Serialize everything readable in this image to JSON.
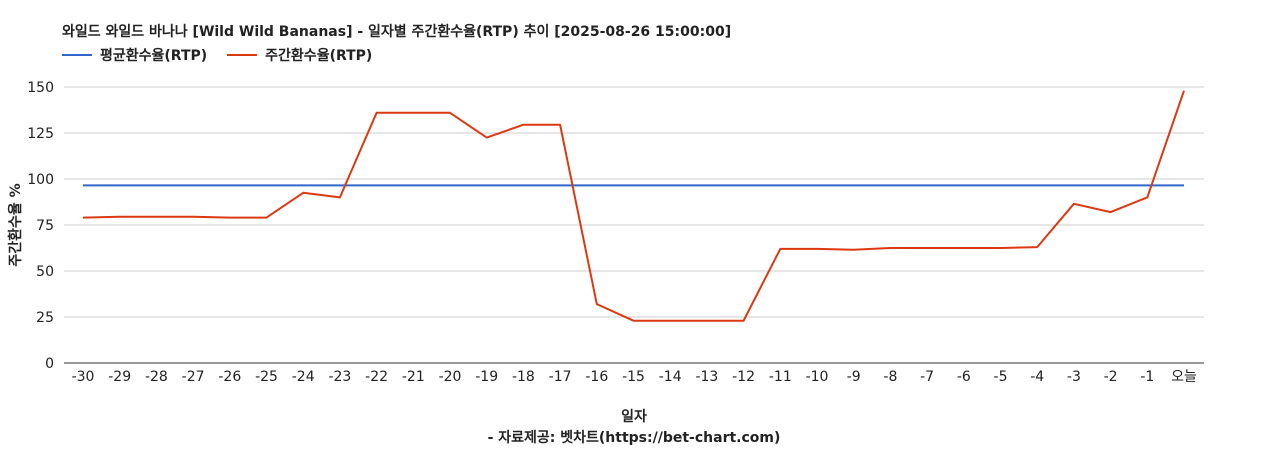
{
  "chart_data": {
    "type": "line",
    "title": "와일드 와일드 바나나 [Wild Wild Bananas] - 일자별 주간환수율(RTP) 추이 [2025-08-26 15:00:00]",
    "xlabel": "일자",
    "ylabel": "주간환수율 %",
    "source": "- 자료제공: 벳차트(https://bet-chart.com)",
    "ylim": [
      0,
      150
    ],
    "yticks": [
      0,
      25,
      50,
      75,
      100,
      125,
      150
    ],
    "grid": true,
    "legend_position": "top-left",
    "categories": [
      "-30",
      "-29",
      "-28",
      "-27",
      "-26",
      "-25",
      "-24",
      "-23",
      "-22",
      "-21",
      "-20",
      "-19",
      "-18",
      "-17",
      "-16",
      "-15",
      "-14",
      "-13",
      "-12",
      "-11",
      "-10",
      "-9",
      "-8",
      "-7",
      "-6",
      "-5",
      "-4",
      "-3",
      "-2",
      "-1",
      "오늘"
    ],
    "series": [
      {
        "name": "평균환수율(RTP)",
        "color": "#3366cc",
        "values": [
          96.5,
          96.5,
          96.5,
          96.5,
          96.5,
          96.5,
          96.5,
          96.5,
          96.5,
          96.5,
          96.5,
          96.5,
          96.5,
          96.5,
          96.5,
          96.5,
          96.5,
          96.5,
          96.5,
          96.5,
          96.5,
          96.5,
          96.5,
          96.5,
          96.5,
          96.5,
          96.5,
          96.5,
          96.5,
          96.5,
          96.5
        ]
      },
      {
        "name": "주간환수율(RTP)",
        "color": "#dc3912",
        "values": [
          79,
          79.5,
          79.5,
          79.5,
          79,
          79,
          92.5,
          90,
          136,
          136,
          136,
          122.5,
          129.5,
          129.5,
          32,
          23,
          23,
          23,
          23,
          62,
          62,
          61.5,
          62.5,
          62.5,
          62.5,
          62.5,
          63,
          86.5,
          82,
          90,
          148
        ]
      }
    ]
  }
}
